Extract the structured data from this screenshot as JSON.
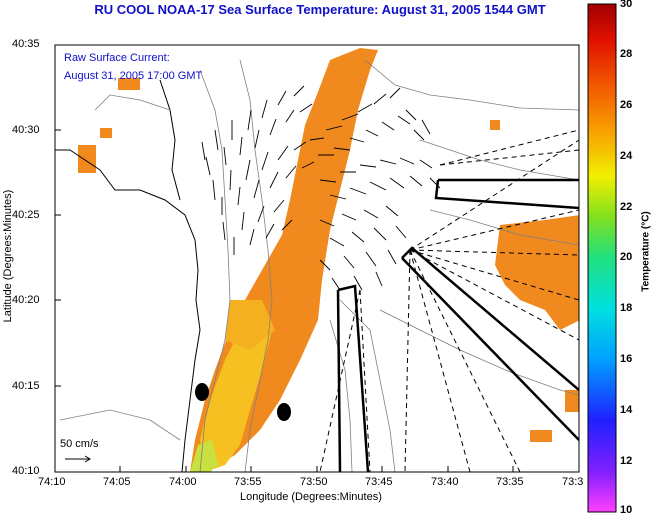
{
  "title": "RU COOL  NOAA-17  Sea Surface Temperature:  August 31, 2005 1544 GMT",
  "annotation": {
    "line1": "Raw Surface Current:",
    "line2": "August 31, 2005 17:00 GMT",
    "scale_label": "50 cm/s"
  },
  "axes": {
    "xlabel": "Longitude (Degrees:Minutes)",
    "ylabel": "Latitude (Degrees:Minutes)",
    "x_ticks": [
      "74:10",
      "74:05",
      "74:00",
      "73:55",
      "73:50",
      "73:45",
      "73:40",
      "73:35",
      "73:3"
    ],
    "y_ticks": [
      "40:35",
      "40:30",
      "40:25",
      "40:20",
      "40:15",
      "40:10"
    ]
  },
  "colorbar": {
    "label": "Temperature (°C)",
    "ticks": [
      "30",
      "28",
      "26",
      "24",
      "22",
      "20",
      "18",
      "16",
      "14",
      "12",
      "10"
    ],
    "range": [
      10,
      30
    ]
  },
  "colors": {
    "title_text": "#1010c8",
    "warm_sst": "#f08a1e",
    "mid_sst": "#f5b020",
    "cool_sst": "#d8d830"
  }
}
